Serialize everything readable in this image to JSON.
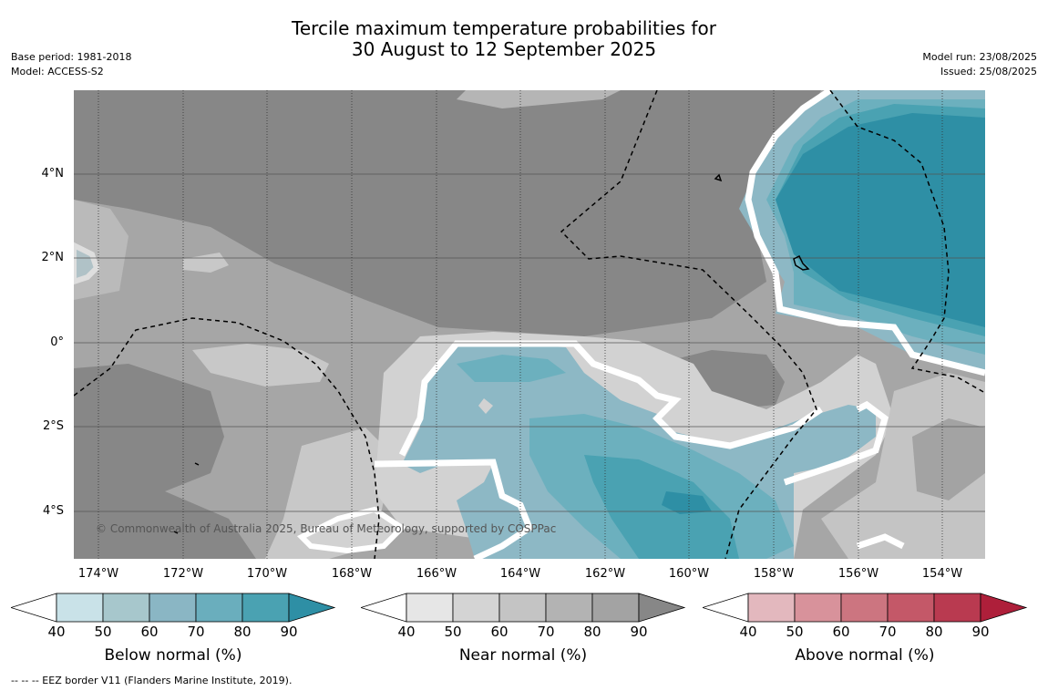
{
  "title_line1": "Tercile maximum temperature probabilities for",
  "title_line2": "30 August to 12 September 2025",
  "meta": {
    "base_period": "Base period: 1981-2018",
    "model": "Model: ACCESS-S2",
    "model_run": "Model run: 23/08/2025",
    "issued": "Issued: 25/08/2025"
  },
  "map": {
    "copyright": "© Commonwealth of Australia 2025, Bureau of Meteorology, supported by COSPPac",
    "lat_labels": [
      "4°N",
      "2°N",
      "0°",
      "2°S",
      "4°S"
    ],
    "lon_labels": [
      "174°W",
      "172°W",
      "170°W",
      "168°W",
      "166°W",
      "164°W",
      "162°W",
      "160°W",
      "158°W",
      "156°W",
      "154°W"
    ],
    "colors": {
      "near_base": "#a6a6a6",
      "near_dark": "#878787",
      "near_light": "#c8c8c8",
      "near_lighter": "#dadada",
      "below_90": "#2e8fa5",
      "below_80": "#4aa2b2",
      "below_70": "#6cb0be",
      "below_60": "#8db8c5",
      "below_50": "#a8c9cf",
      "contour_white": "#ffffff"
    }
  },
  "colorbars": [
    {
      "title": "Below normal (%)",
      "ticks": [
        "40",
        "50",
        "60",
        "70",
        "80",
        "90"
      ],
      "colors": [
        "#ffffff",
        "#c9e2e8",
        "#a7c7cc",
        "#8ab6c4",
        "#6aaebd",
        "#4aa2b2",
        "#2e8fa5"
      ]
    },
    {
      "title": "Near normal (%)",
      "ticks": [
        "40",
        "50",
        "60",
        "70",
        "80",
        "90"
      ],
      "colors": [
        "#ffffff",
        "#e6e6e6",
        "#d4d4d4",
        "#c4c4c4",
        "#b3b3b3",
        "#a3a3a3",
        "#878787"
      ]
    },
    {
      "title": "Above normal (%)",
      "ticks": [
        "40",
        "50",
        "60",
        "70",
        "80",
        "90"
      ],
      "colors": [
        "#ffffff",
        "#e3b8be",
        "#d8929b",
        "#cc7580",
        "#c45868",
        "#b93a50",
        "#ae1f3a"
      ]
    }
  ],
  "footer": "--  --  -- EEZ border V11 (Flanders Marine Institute, 2019)."
}
